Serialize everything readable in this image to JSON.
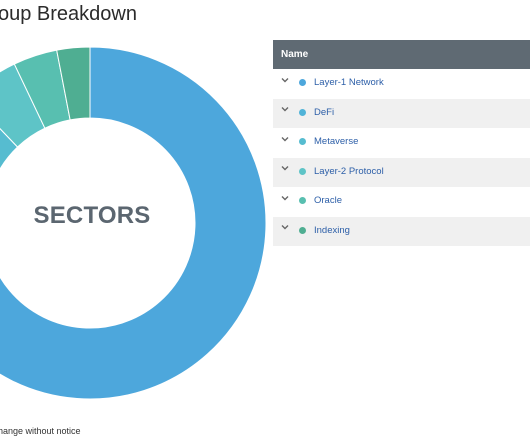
{
  "header": {
    "title": "oup Breakdown"
  },
  "chart": {
    "center_label": "SECTORS",
    "colors": {
      "blue": "#4da7dc",
      "teal_light": "#5ec4c7",
      "teal_mid": "#58bfb0",
      "teal_dark": "#4fae92"
    }
  },
  "chart_data": {
    "type": "pie",
    "title": "",
    "categories": [
      "Layer-1 Network",
      "DeFi",
      "Metaverse",
      "Layer-2 Protocol",
      "Oracle",
      "Indexing"
    ],
    "values": [
      76,
      6,
      5,
      5,
      4,
      3
    ]
  },
  "table": {
    "header": "Name",
    "rows": [
      {
        "label": "Layer-1 Network",
        "icon": "chevron-down-icon",
        "color": "#4da7dc"
      },
      {
        "label": "DeFi",
        "icon": "chevron-down-icon",
        "color": "#50b3d8"
      },
      {
        "label": "Metaverse",
        "icon": "chevron-down-icon",
        "color": "#56bcd0"
      },
      {
        "label": "Layer-2 Protocol",
        "icon": "chevron-down-icon",
        "color": "#5ec4c7"
      },
      {
        "label": "Oracle",
        "icon": "chevron-down-icon",
        "color": "#58bfb0"
      },
      {
        "label": "Indexing",
        "icon": "chevron-down-icon",
        "color": "#4fae92"
      }
    ]
  },
  "footer": {
    "note": "hange without notice"
  }
}
